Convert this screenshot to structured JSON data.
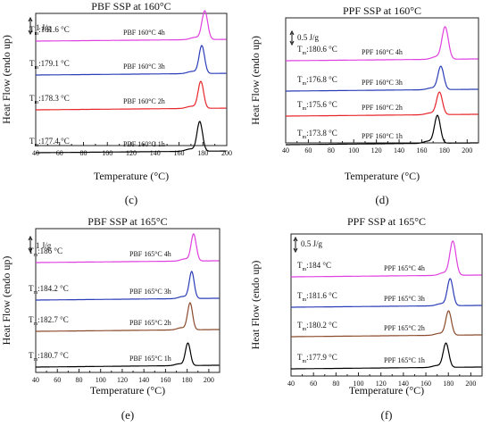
{
  "chart_data": [
    {
      "type": "line",
      "panel_label": "(c)",
      "title": "PBF SSP at 160°C",
      "xlabel": "Temperature (°C)",
      "ylabel": "Heat Flow (endo up)",
      "xlim": [
        40,
        200
      ],
      "xticks": [
        40,
        60,
        80,
        100,
        120,
        140,
        160,
        180,
        200
      ],
      "scale_bar": "1 J/g",
      "series": [
        {
          "name": "PBF 160°C 1h",
          "tm_label": "T",
          "tm_sub": "m",
          "tm_value": ":177.4 °C",
          "peak_x": 177.4,
          "color": "#000000"
        },
        {
          "name": "PBF 160°C 2h",
          "tm_label": "T",
          "tm_sub": "m",
          "tm_value": ":178.3 °C",
          "peak_x": 178.3,
          "color": "#e8262a"
        },
        {
          "name": "PBF 160°C 3h",
          "tm_label": "T",
          "tm_sub": "m",
          "tm_value": ":179.1 °C",
          "peak_x": 179.1,
          "color": "#2a3db8"
        },
        {
          "name": "PBF 160°C 4h",
          "tm_label": "T",
          "tm_sub": "m",
          "tm_value": ":181.6 °C",
          "peak_x": 181.6,
          "color": "#e040e0"
        }
      ]
    },
    {
      "type": "line",
      "panel_label": "(d)",
      "title": "PPF SSP at 160°C",
      "xlabel": "Temperature (°C)",
      "ylabel": "Heat Flow (endo up)",
      "xlim": [
        40,
        210
      ],
      "xticks": [
        40,
        60,
        80,
        100,
        120,
        140,
        160,
        180,
        200
      ],
      "scale_bar": "0.5 J/g",
      "series": [
        {
          "name": "PPF 160°C 1h",
          "tm_label": "T",
          "tm_sub": "m",
          "tm_value": ":173.8 °C",
          "peak_x": 173.8,
          "color": "#000000"
        },
        {
          "name": "PPF 160°C 2h",
          "tm_label": "T",
          "tm_sub": "m",
          "tm_value": ":175.6 °C",
          "peak_x": 175.6,
          "color": "#e8262a"
        },
        {
          "name": "PPF 160°C 3h",
          "tm_label": "T",
          "tm_sub": "m",
          "tm_value": ":176.8 °C",
          "peak_x": 176.8,
          "color": "#2a3db8"
        },
        {
          "name": "PPF 160°C 4h",
          "tm_label": "T",
          "tm_sub": "m",
          "tm_value": ":180.6 °C",
          "peak_x": 180.6,
          "color": "#e040e0"
        }
      ]
    },
    {
      "type": "line",
      "panel_label": "(e)",
      "title": "PBF SSP at 165°C",
      "xlabel": "Temperature (°C)",
      "ylabel": "Heat Flow (endo up)",
      "xlim": [
        40,
        210
      ],
      "xticks": [
        40,
        60,
        80,
        100,
        120,
        140,
        160,
        180,
        200
      ],
      "scale_bar": "1 J/g",
      "series": [
        {
          "name": "PBF 165°C 1h",
          "tm_label": "T",
          "tm_sub": "m",
          "tm_value": ":180.7 °C",
          "peak_x": 180.7,
          "color": "#000000"
        },
        {
          "name": "PBF 165°C 2h",
          "tm_label": "T",
          "tm_sub": "m",
          "tm_value": ":182.7 °C",
          "peak_x": 182.7,
          "color": "#8b4a2b"
        },
        {
          "name": "PBF 165°C 3h",
          "tm_label": "T",
          "tm_sub": "m",
          "tm_value": ":184.2 °C",
          "peak_x": 184.2,
          "color": "#2a3db8"
        },
        {
          "name": "PBF 165°C 4h",
          "tm_label": "T",
          "tm_sub": "m",
          "tm_value": ":186 °C",
          "peak_x": 186.0,
          "color": "#e040e0"
        }
      ]
    },
    {
      "type": "line",
      "panel_label": "(f)",
      "title": "PPF SSP at 165°C",
      "xlabel": "Temperature (°C)",
      "ylabel": "Heat Flow (endo up)",
      "xlim": [
        40,
        210
      ],
      "xticks": [
        40,
        60,
        80,
        100,
        120,
        140,
        160,
        180,
        200
      ],
      "scale_bar": "0.5 J/g",
      "series": [
        {
          "name": "PPF 165°C 1h",
          "tm_label": "T",
          "tm_sub": "m",
          "tm_value": ":177.9 °C",
          "peak_x": 177.9,
          "color": "#000000"
        },
        {
          "name": "PPF 165°C 2h",
          "tm_label": "T",
          "tm_sub": "m",
          "tm_value": ":180.2 °C",
          "peak_x": 180.2,
          "color": "#8b4a2b"
        },
        {
          "name": "PPF 165°C 3h",
          "tm_label": "T",
          "tm_sub": "m",
          "tm_value": ":181.6 °C",
          "peak_x": 181.6,
          "color": "#2a3db8"
        },
        {
          "name": "PPF 165°C 4h",
          "tm_label": "T",
          "tm_sub": "m",
          "tm_value": ":184 °C",
          "peak_x": 184.0,
          "color": "#e040e0"
        }
      ]
    }
  ]
}
